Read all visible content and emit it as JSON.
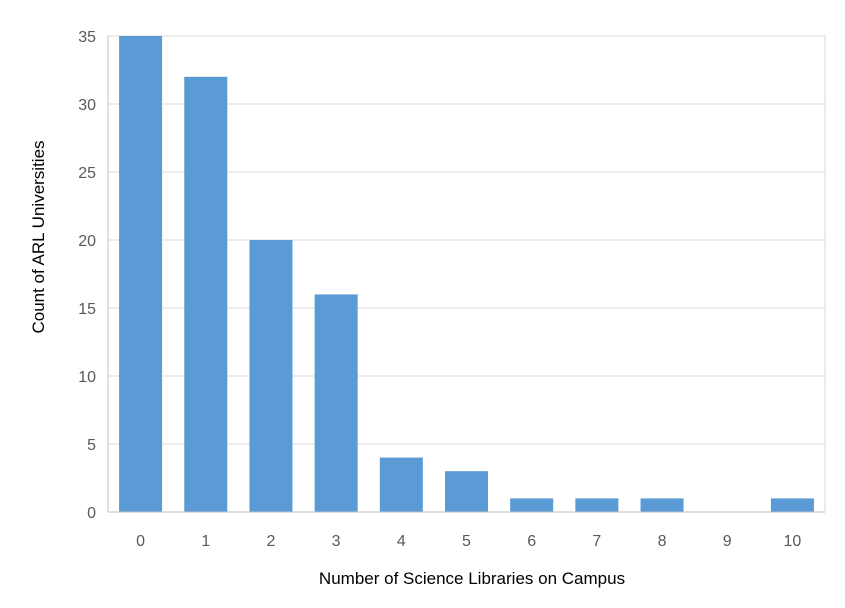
{
  "chart_data": {
    "type": "bar",
    "title": "",
    "xlabel": "Number of Science Libraries on Campus",
    "ylabel": "Count of ARL Universities",
    "categories": [
      "0",
      "1",
      "2",
      "3",
      "4",
      "5",
      "6",
      "7",
      "8",
      "9",
      "10"
    ],
    "values": [
      35,
      32,
      20,
      16,
      4,
      3,
      1,
      1,
      1,
      0,
      1
    ],
    "ylim": [
      0,
      35
    ],
    "yticks": [
      "0",
      "5",
      "10",
      "15",
      "20",
      "25",
      "30",
      "35"
    ],
    "grid": true,
    "legend": "none",
    "bar_color": "#5b9bd5",
    "grid_color": "#d9d9d9"
  }
}
